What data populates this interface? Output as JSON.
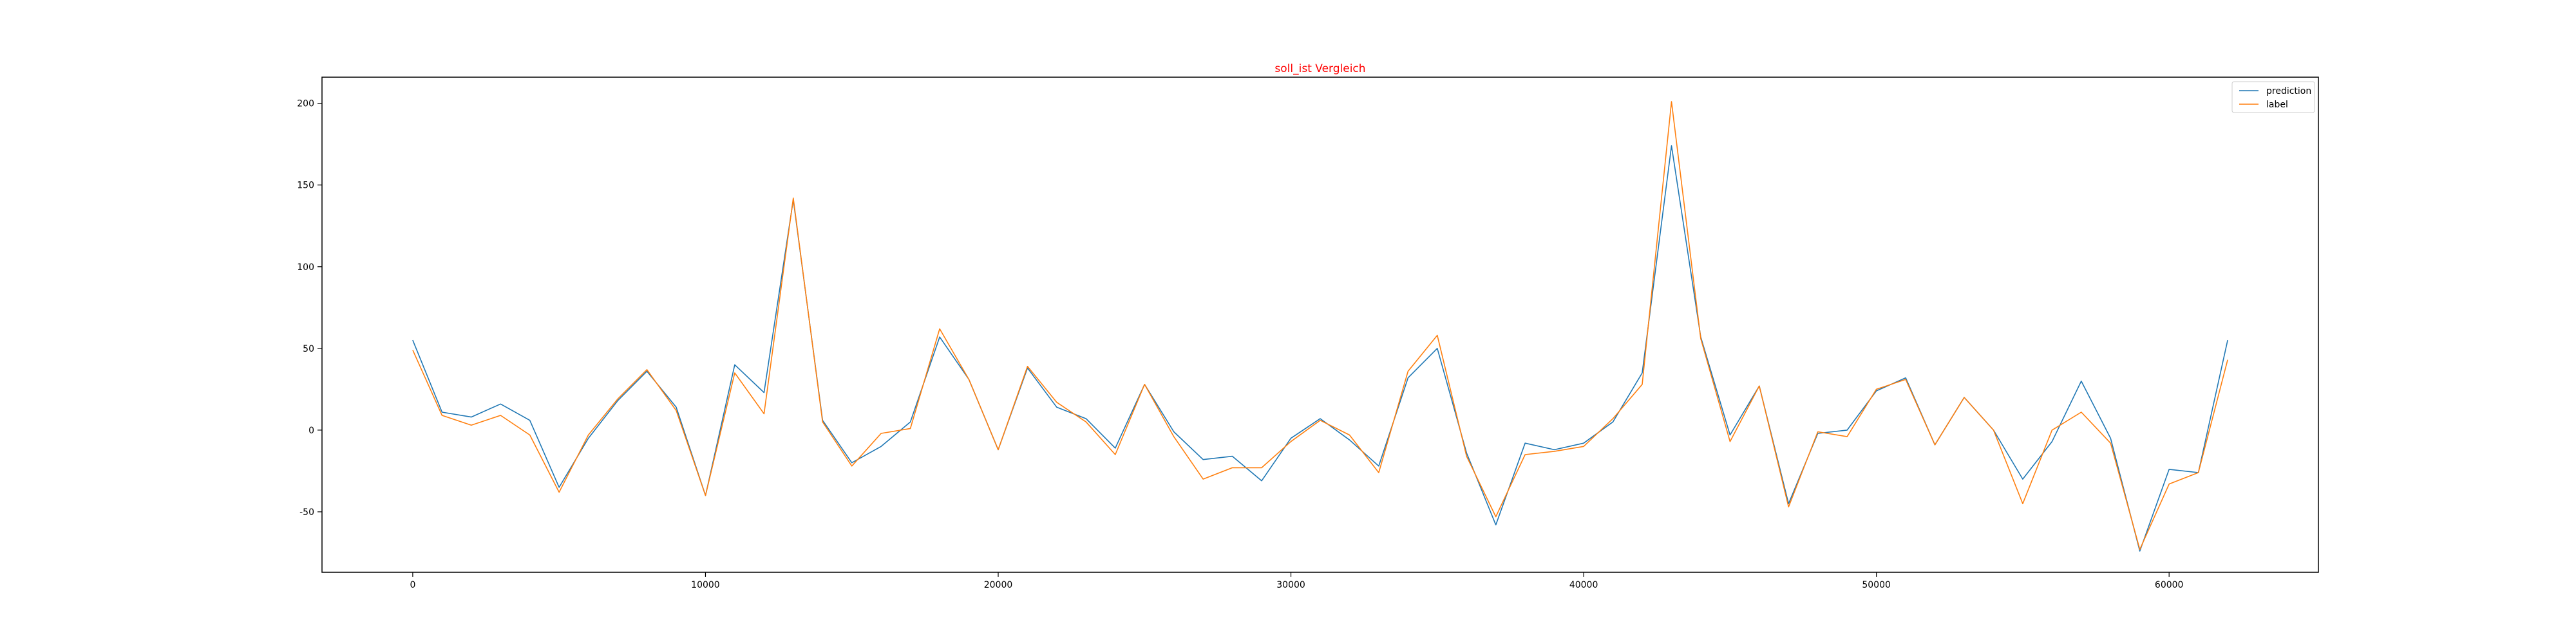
{
  "chart_data": {
    "type": "line",
    "title": "soll_ist Vergleich",
    "title_color": "#ff0000",
    "xlabel": "",
    "ylabel": "",
    "xlim": [
      -3100,
      65100
    ],
    "ylim": [
      -87,
      216
    ],
    "xticks": [
      0,
      10000,
      20000,
      30000,
      40000,
      50000,
      60000
    ],
    "yticks": [
      -50,
      0,
      50,
      100,
      150,
      200
    ],
    "grid": false,
    "legend_position": "top-right",
    "x": [
      0,
      1000,
      2000,
      3000,
      4000,
      5000,
      6000,
      7000,
      8000,
      9000,
      10000,
      11000,
      12000,
      13000,
      14000,
      15000,
      16000,
      17000,
      18000,
      19000,
      20000,
      21000,
      22000,
      23000,
      24000,
      25000,
      26000,
      27000,
      28000,
      29000,
      30000,
      31000,
      32000,
      33000,
      34000,
      35000,
      36000,
      37000,
      38000,
      39000,
      40000,
      41000,
      42000,
      43000,
      44000,
      45000,
      46000,
      47000,
      48000,
      49000,
      50000,
      51000,
      52000,
      53000,
      54000,
      55000,
      56000,
      57000,
      58000,
      59000,
      60000,
      61000,
      62000
    ],
    "series": [
      {
        "name": "prediction",
        "color": "#1f77b4",
        "values": [
          55,
          11,
          8,
          16,
          6,
          -35,
          -5,
          18,
          36,
          14,
          -40,
          40,
          23,
          141,
          6,
          -20,
          -10,
          5,
          57,
          31,
          -12,
          38,
          14,
          7,
          -11,
          28,
          -1,
          -18,
          -16,
          -31,
          -5,
          7,
          -6,
          -22,
          32,
          50,
          -14,
          -58,
          -8,
          -12,
          -8,
          5,
          35,
          174,
          57,
          -3,
          27,
          -45,
          -2,
          0,
          24,
          32,
          -9,
          20,
          0,
          -30,
          -7,
          30,
          -5,
          -74,
          -24,
          -26,
          55
        ]
      },
      {
        "name": "label",
        "color": "#ff7f0e",
        "values": [
          49,
          9,
          3,
          9,
          -3,
          -38,
          -3,
          19,
          37,
          12,
          -40,
          35,
          10,
          142,
          5,
          -22,
          -2,
          1,
          62,
          31,
          -12,
          39,
          17,
          5,
          -15,
          28,
          -4,
          -30,
          -23,
          -23,
          -7,
          6,
          -3,
          -26,
          36,
          58,
          -16,
          -53,
          -15,
          -13,
          -10,
          7,
          28,
          201,
          56,
          -7,
          27,
          -47,
          -1,
          -4,
          25,
          31,
          -9,
          20,
          0,
          -45,
          0,
          11,
          -8,
          -73,
          -33,
          -26,
          43
        ]
      }
    ]
  }
}
